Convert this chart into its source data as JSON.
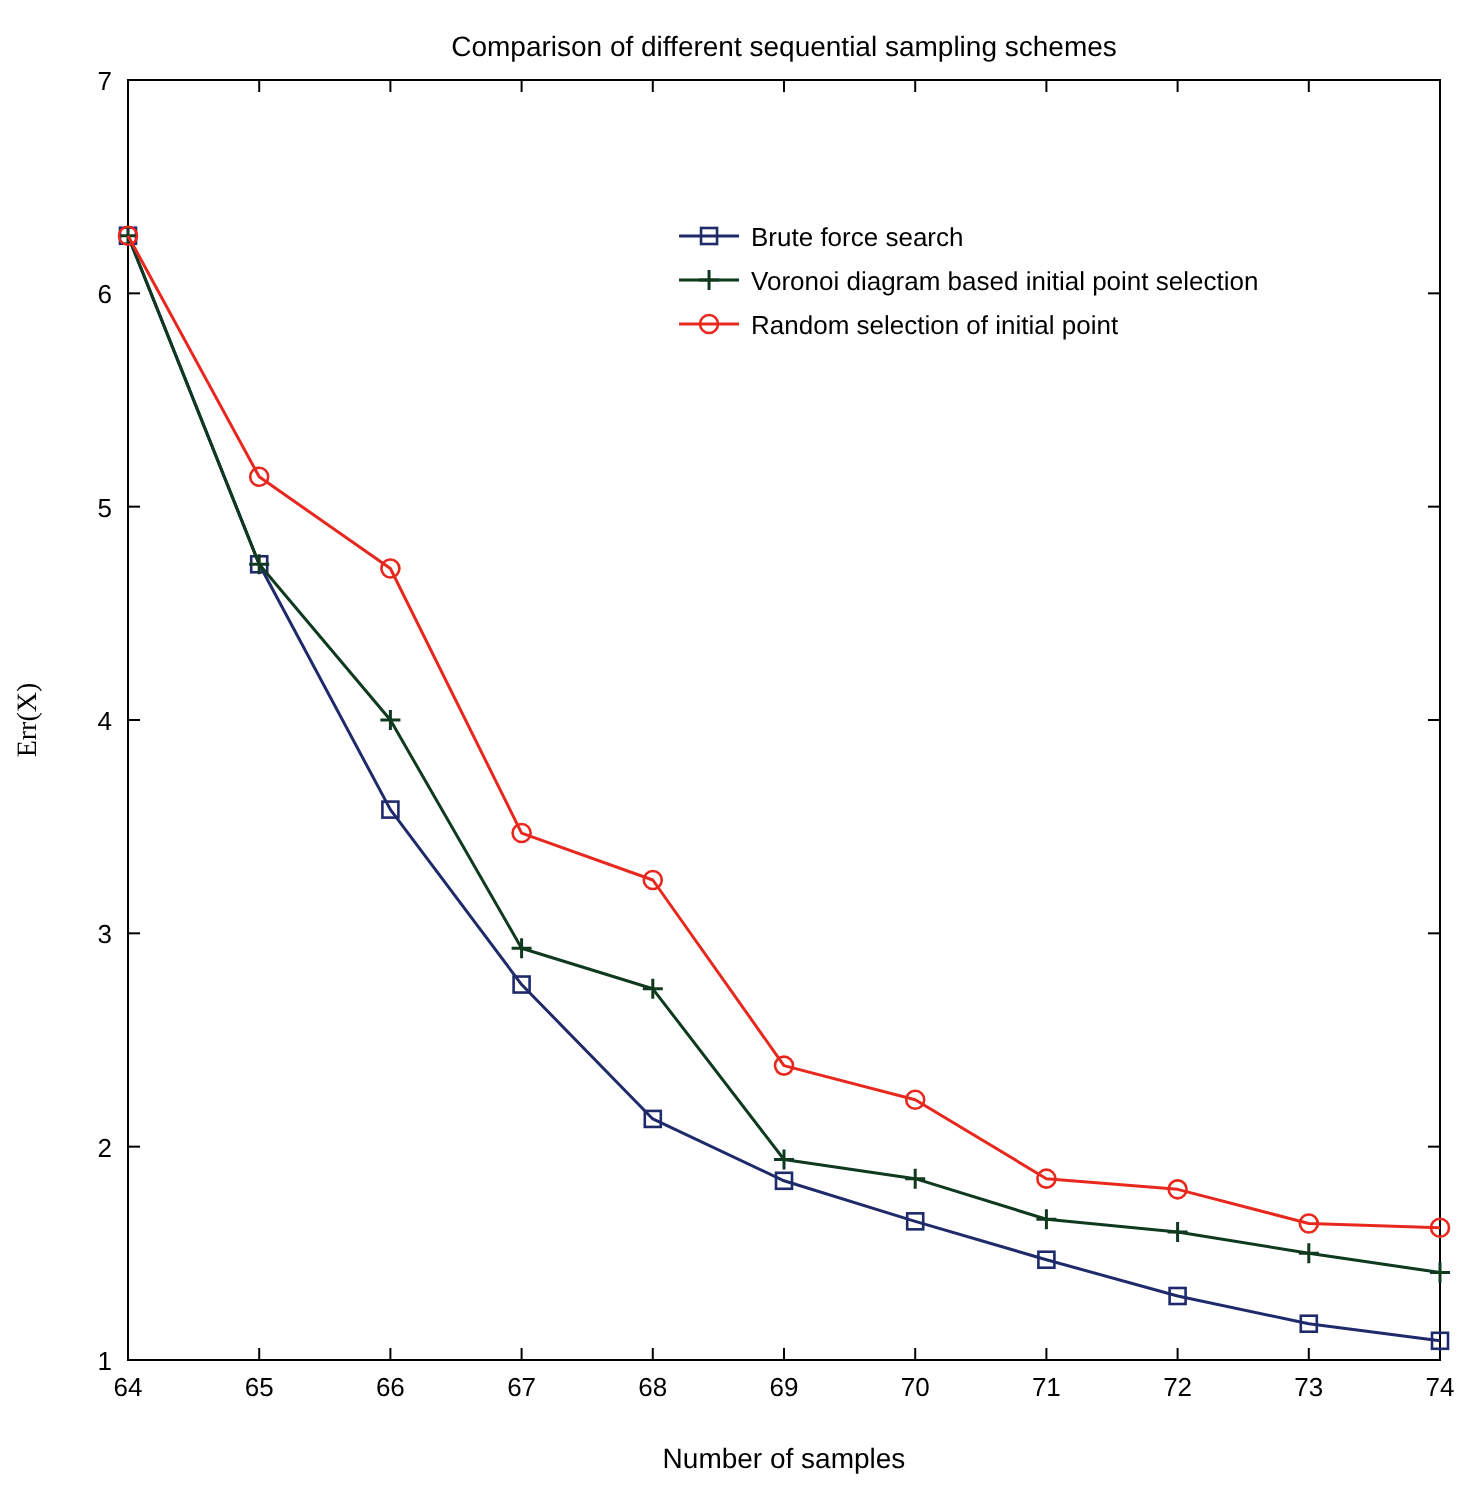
{
  "chart_data": {
    "type": "line",
    "title": "Comparison of different sequential sampling schemes",
    "xlabel": "Number of samples",
    "ylabel": "Err(X)",
    "x": [
      64,
      65,
      66,
      67,
      68,
      69,
      70,
      71,
      72,
      73,
      74
    ],
    "xlim": [
      64,
      74
    ],
    "xticks": [
      64,
      65,
      66,
      67,
      68,
      69,
      70,
      71,
      72,
      73,
      74
    ],
    "ylim": [
      1,
      7
    ],
    "yticks": [
      1,
      2,
      3,
      4,
      5,
      6,
      7
    ],
    "grid": false,
    "legend": "top right",
    "series": [
      {
        "name": "Brute force search",
        "color": "#1f2a6b",
        "marker": "square",
        "values": [
          6.27,
          4.73,
          3.58,
          2.76,
          2.13,
          1.84,
          1.65,
          1.47,
          1.3,
          1.17,
          1.09
        ]
      },
      {
        "name": "Voronoi diagram based initial point selection",
        "color": "#0f3a1f",
        "marker": "cross",
        "values": [
          6.27,
          4.73,
          4.0,
          2.93,
          2.74,
          1.94,
          1.85,
          1.66,
          1.6,
          1.5,
          1.41
        ]
      },
      {
        "name": "Random selection of initial point",
        "color": "#e8281e",
        "marker": "circle",
        "values": [
          6.27,
          5.14,
          4.71,
          3.47,
          3.25,
          2.38,
          2.22,
          1.85,
          1.8,
          1.64,
          1.62
        ]
      }
    ]
  }
}
